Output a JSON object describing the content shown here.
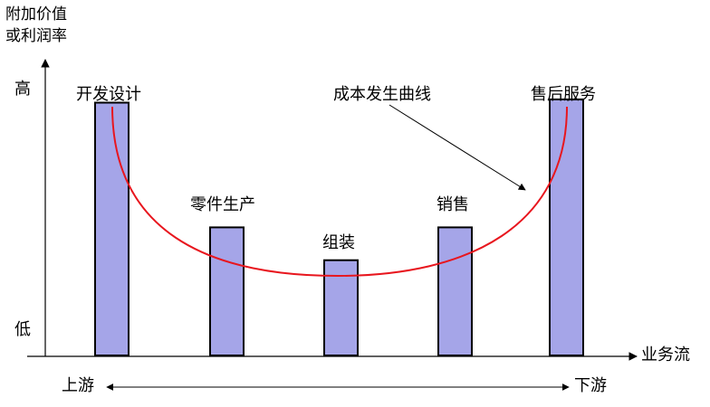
{
  "axes": {
    "y_title_line1": "附加价值",
    "y_title_line2": "或利润率",
    "y_high": "高",
    "y_low": "低",
    "x_title": "业务流",
    "upstream": "上游",
    "downstream": "下游"
  },
  "stages": [
    {
      "label": "开发设计",
      "level": 0.77
    },
    {
      "label": "零件生产",
      "level": 0.39
    },
    {
      "label": "组装",
      "level": 0.29
    },
    {
      "label": "销售",
      "level": 0.39
    },
    {
      "label": "售后服务",
      "level": 0.78
    }
  ],
  "curve": {
    "label": "成本发生曲线"
  },
  "colors": {
    "bar_fill": "#a5a5e8",
    "bar_stroke": "#000000",
    "curve": "#e8161e",
    "axis": "#000000"
  }
}
